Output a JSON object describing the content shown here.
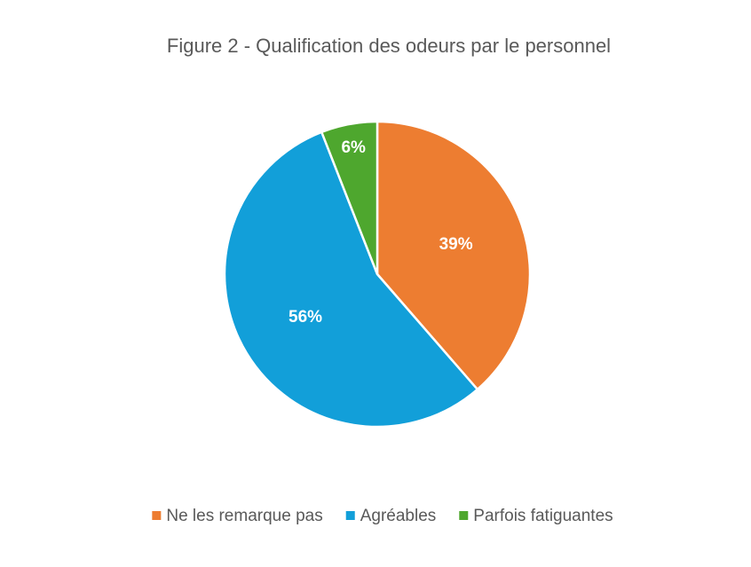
{
  "chart_data": {
    "type": "pie",
    "title": "Figure 2 - Qualification des odeurs par le personnel",
    "categories": [
      "Ne les remarque pas",
      "Agréables",
      "Parfois fatiguantes"
    ],
    "values": [
      39,
      56,
      6
    ],
    "value_labels": [
      "39%",
      "56%",
      "6%"
    ],
    "colors": [
      "#ED7D31",
      "#129FD9",
      "#4EA72E"
    ],
    "legend": "bottom"
  }
}
